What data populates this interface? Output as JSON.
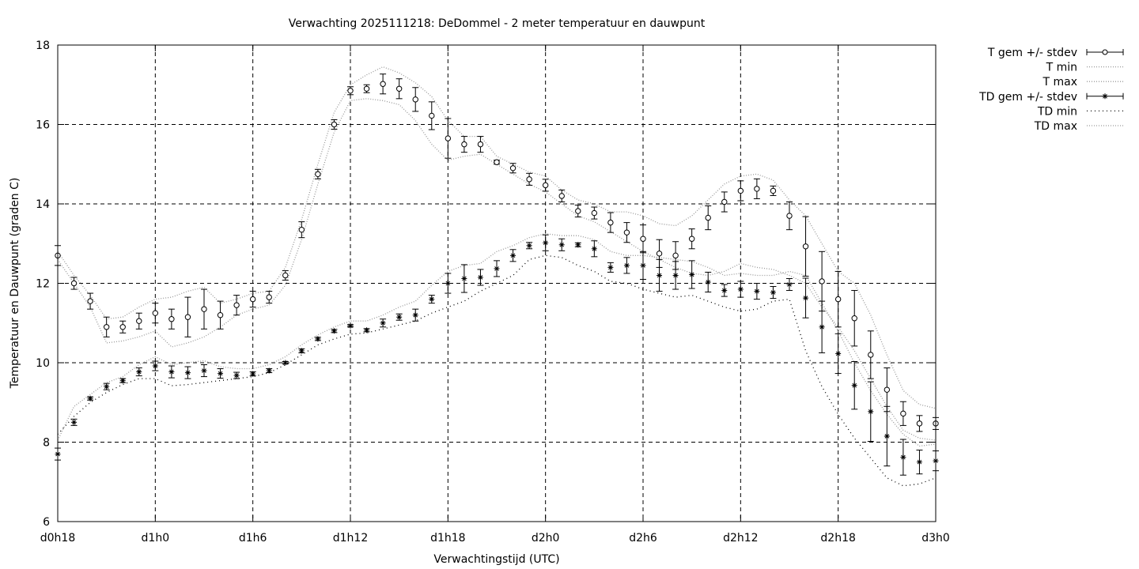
{
  "chart_data": {
    "type": "line",
    "title": "Verwachting 2025111218: DeDommel - 2 meter temperatuur en dauwpunt",
    "xlabel": "Verwachtingstijd (UTC)",
    "ylabel": "Temperatuur en Dauwpunt (graden C)",
    "xlim": [
      18,
      72
    ],
    "ylim": [
      6,
      18
    ],
    "x_ticks": [
      {
        "x": 18,
        "label": "d0h18"
      },
      {
        "x": 24,
        "label": "d1h0"
      },
      {
        "x": 30,
        "label": "d1h6"
      },
      {
        "x": 36,
        "label": "d1h12"
      },
      {
        "x": 42,
        "label": "d1h18"
      },
      {
        "x": 48,
        "label": "d2h0"
      },
      {
        "x": 54,
        "label": "d2h6"
      },
      {
        "x": 60,
        "label": "d2h12"
      },
      {
        "x": 66,
        "label": "d2h18"
      },
      {
        "x": 72,
        "label": "d3h0"
      }
    ],
    "y_ticks": [
      {
        "y": 6,
        "label": "6"
      },
      {
        "y": 8,
        "label": "8"
      },
      {
        "y": 10,
        "label": "10"
      },
      {
        "y": 12,
        "label": "12"
      },
      {
        "y": 14,
        "label": "14"
      },
      {
        "y": 16,
        "label": "16"
      },
      {
        "y": 18,
        "label": "18"
      }
    ],
    "grid": true,
    "legend_position": "outside-top-right",
    "x": [
      18,
      19,
      20,
      21,
      22,
      23,
      24,
      25,
      26,
      27,
      28,
      29,
      30,
      31,
      32,
      33,
      34,
      35,
      36,
      37,
      38,
      39,
      40,
      41,
      42,
      43,
      44,
      45,
      46,
      47,
      48,
      49,
      50,
      51,
      52,
      53,
      54,
      55,
      56,
      57,
      58,
      59,
      60,
      61,
      62,
      63,
      64,
      65,
      66,
      67,
      68,
      69,
      70,
      71,
      72
    ],
    "series": [
      {
        "name": "T gem +/- stdev",
        "marker": "circle",
        "values": [
          12.7,
          12.0,
          11.55,
          10.9,
          10.9,
          11.05,
          11.25,
          11.1,
          11.15,
          11.35,
          11.2,
          11.45,
          11.6,
          11.65,
          12.2,
          13.35,
          14.75,
          16.0,
          16.85,
          16.9,
          17.02,
          16.9,
          16.63,
          16.22,
          15.65,
          15.5,
          15.5,
          15.05,
          14.9,
          14.62,
          14.47,
          14.2,
          13.82,
          13.77,
          13.53,
          13.28,
          13.12,
          12.75,
          12.7,
          13.12,
          13.65,
          14.05,
          14.33,
          14.38,
          14.33,
          13.7,
          12.93,
          12.05,
          11.6,
          11.12,
          10.2,
          9.32,
          8.72,
          8.47,
          8.47
        ],
        "stdev": [
          0.25,
          0.15,
          0.2,
          0.25,
          0.15,
          0.2,
          0.25,
          0.25,
          0.5,
          0.5,
          0.35,
          0.25,
          0.2,
          0.15,
          0.12,
          0.2,
          0.12,
          0.12,
          0.1,
          0.1,
          0.25,
          0.25,
          0.3,
          0.35,
          0.5,
          0.2,
          0.2,
          0.05,
          0.12,
          0.15,
          0.15,
          0.15,
          0.15,
          0.15,
          0.25,
          0.25,
          0.35,
          0.35,
          0.35,
          0.25,
          0.3,
          0.25,
          0.25,
          0.25,
          0.12,
          0.35,
          0.75,
          0.75,
          0.7,
          0.7,
          0.6,
          0.55,
          0.3,
          0.2,
          0.15
        ]
      },
      {
        "name": "T min",
        "style": "dotted",
        "values": [
          12.6,
          12.0,
          11.4,
          10.5,
          10.55,
          10.65,
          10.8,
          10.4,
          10.5,
          10.65,
          10.9,
          11.2,
          11.35,
          11.45,
          11.95,
          13.1,
          14.5,
          15.8,
          16.6,
          16.65,
          16.6,
          16.5,
          16.1,
          15.5,
          15.1,
          15.2,
          15.25,
          15.0,
          14.75,
          14.5,
          14.3,
          14.0,
          13.7,
          13.55,
          13.3,
          13.05,
          12.8,
          12.6,
          12.4,
          12.25,
          12.2,
          12.3,
          12.5,
          12.4,
          12.35,
          12.2,
          12.0,
          11.4,
          10.9,
          10.3,
          9.6,
          8.9,
          8.3,
          8.1,
          8.05
        ]
      },
      {
        "name": "T max",
        "style": "dotted",
        "values": [
          12.8,
          12.2,
          11.7,
          11.1,
          11.15,
          11.4,
          11.6,
          11.65,
          11.8,
          11.9,
          11.5,
          11.6,
          11.75,
          11.8,
          12.4,
          13.6,
          15.0,
          16.3,
          17.0,
          17.25,
          17.45,
          17.3,
          17.05,
          16.7,
          16.1,
          15.7,
          15.7,
          15.2,
          15.0,
          14.8,
          14.7,
          14.35,
          14.1,
          14.0,
          13.8,
          13.8,
          13.7,
          13.5,
          13.45,
          13.7,
          14.1,
          14.5,
          14.7,
          14.75,
          14.6,
          14.1,
          13.7,
          13.0,
          12.3,
          12.0,
          11.2,
          10.2,
          9.3,
          8.95,
          8.85
        ]
      },
      {
        "name": "TD gem +/- stdev",
        "marker": "star",
        "values": [
          7.7,
          8.5,
          9.1,
          9.4,
          9.55,
          9.77,
          9.92,
          9.77,
          9.75,
          9.8,
          9.73,
          9.68,
          9.72,
          9.8,
          10.0,
          10.3,
          10.6,
          10.8,
          10.93,
          10.82,
          11.0,
          11.15,
          11.2,
          11.6,
          12.0,
          12.12,
          12.15,
          12.37,
          12.7,
          12.95,
          13.02,
          12.97,
          12.97,
          12.87,
          12.4,
          12.45,
          12.45,
          12.2,
          12.2,
          12.22,
          12.03,
          11.82,
          11.85,
          11.8,
          11.77,
          11.97,
          11.63,
          10.9,
          10.23,
          9.43,
          8.77,
          8.15,
          7.62,
          7.5,
          7.53
        ]
      },
      {
        "name": "TD min",
        "style": "dotted",
        "values": [
          8.2,
          8.65,
          9.0,
          9.25,
          9.45,
          9.6,
          9.6,
          9.42,
          9.45,
          9.5,
          9.55,
          9.6,
          9.65,
          9.75,
          9.95,
          10.2,
          10.45,
          10.6,
          10.72,
          10.75,
          10.85,
          10.95,
          11.05,
          11.25,
          11.4,
          11.55,
          11.8,
          12.0,
          12.2,
          12.6,
          12.7,
          12.65,
          12.45,
          12.3,
          12.05,
          12.0,
          11.85,
          11.75,
          11.65,
          11.7,
          11.55,
          11.4,
          11.3,
          11.35,
          11.55,
          11.6,
          10.3,
          9.4,
          8.7,
          8.1,
          7.6,
          7.1,
          6.9,
          6.95,
          7.1
        ]
      },
      {
        "name": "TD max",
        "style": "dotted",
        "values": [
          8.05,
          8.9,
          9.2,
          9.5,
          9.65,
          9.95,
          10.15,
          9.95,
          10.0,
          10.05,
          9.9,
          9.85,
          9.85,
          9.95,
          10.15,
          10.45,
          10.7,
          10.9,
          11.05,
          11.05,
          11.2,
          11.4,
          11.55,
          11.95,
          12.3,
          12.45,
          12.5,
          12.8,
          12.95,
          13.15,
          13.25,
          13.2,
          13.2,
          13.1,
          12.8,
          12.7,
          12.7,
          12.65,
          12.6,
          12.55,
          12.4,
          12.2,
          12.25,
          12.2,
          12.2,
          12.3,
          12.2,
          11.5,
          10.8,
          10.0,
          9.3,
          8.7,
          8.2,
          7.9,
          7.95
        ]
      },
      {
        "name": "TD gem +/- stdev_err",
        "role": "stdev-of-TD",
        "values": [
          0.15,
          0.08,
          0.04,
          0.08,
          0.05,
          0.1,
          0.12,
          0.15,
          0.15,
          0.15,
          0.12,
          0.08,
          0.05,
          0.05,
          0.03,
          0.05,
          0.04,
          0.04,
          0.03,
          0.04,
          0.1,
          0.08,
          0.15,
          0.1,
          0.25,
          0.35,
          0.2,
          0.2,
          0.15,
          0.08,
          0.2,
          0.15,
          0.05,
          0.2,
          0.12,
          0.2,
          0.35,
          0.4,
          0.35,
          0.35,
          0.25,
          0.15,
          0.2,
          0.2,
          0.15,
          0.15,
          0.5,
          0.65,
          0.5,
          0.6,
          0.75,
          0.75,
          0.45,
          0.3,
          0.25
        ]
      }
    ]
  }
}
